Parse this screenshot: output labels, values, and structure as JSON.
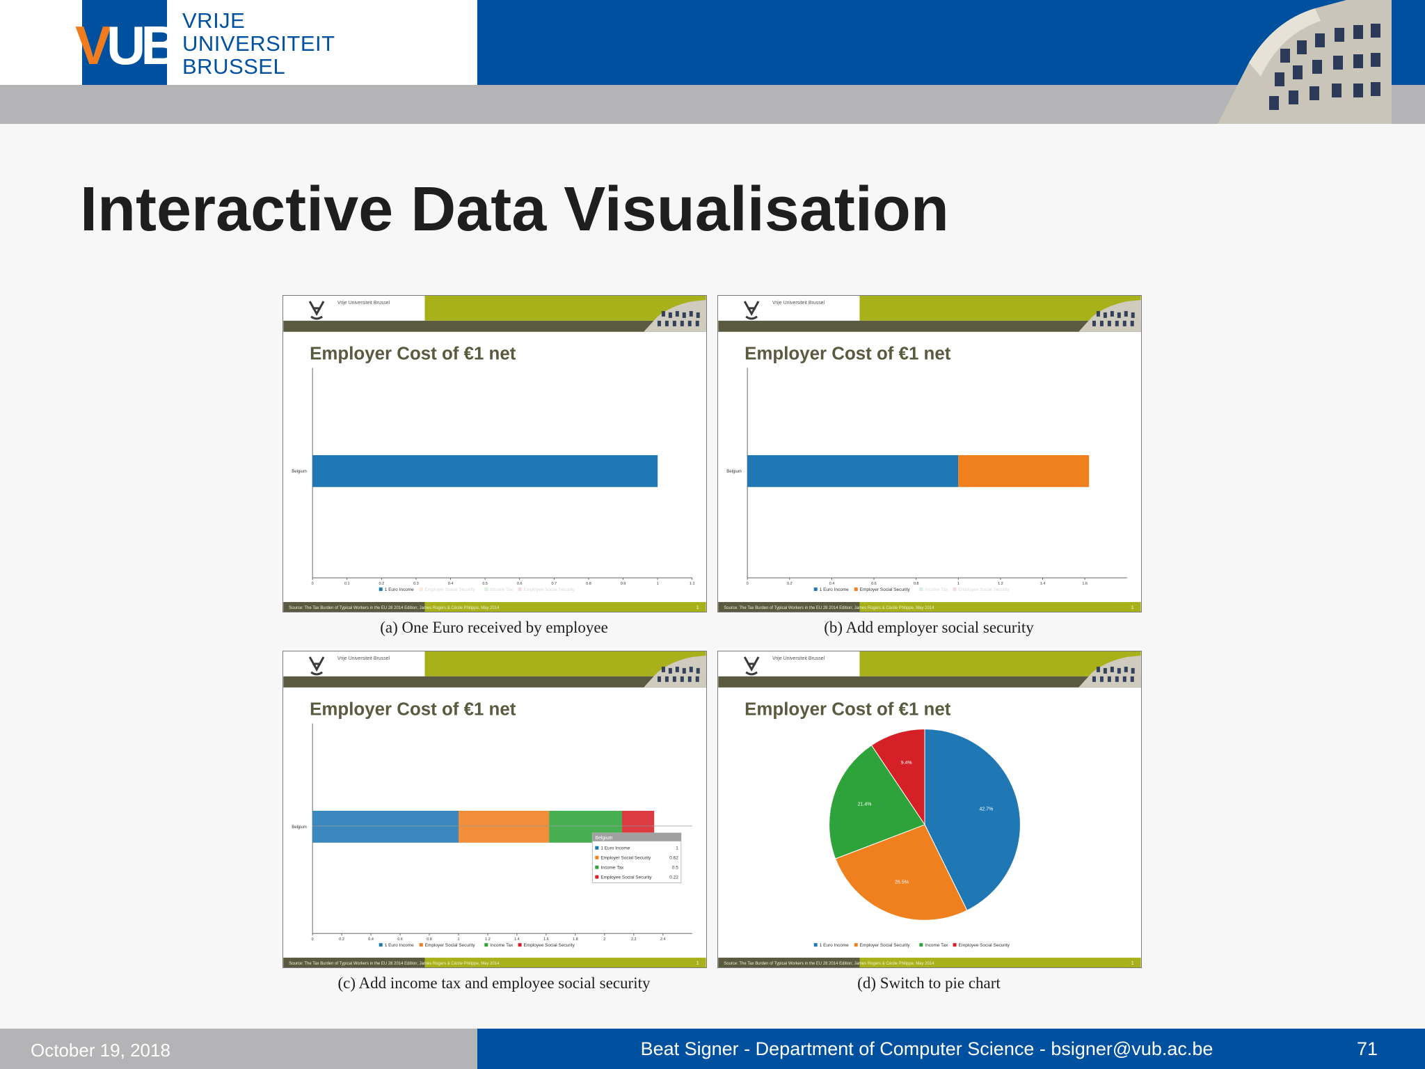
{
  "header": {
    "logo_text": "VUB",
    "university_lines": [
      "VRIJE",
      "UNIVERSITEIT",
      "BRUSSEL"
    ]
  },
  "slide": {
    "title": "Interactive Data Visualisation"
  },
  "colors": {
    "vub_blue": "#0050a0",
    "vub_orange": "#f07c1e",
    "panel_olive": "#a8b11a",
    "panel_dark": "#5a5a40",
    "series": [
      "#1f78b4",
      "#f07f1e",
      "#2ea33a",
      "#d62027"
    ]
  },
  "panel_common": {
    "header_text": "Vrije Universiteit Brussel",
    "title": "Employer Cost of €1 net",
    "category": "Belgium",
    "legend": [
      "1 Euro Income",
      "Employer Social Security",
      "Income Tax",
      "Employee Social Security"
    ],
    "source": "Source: The Tax Burden of Typical Workers in the EU 28 2014 Edition; James Rogers & Cécile Philippe, May 2014",
    "page": "1"
  },
  "captions": [
    "(a) One Euro received by employee",
    "(b) Add employer social security",
    "(c) Add income tax and employee social security",
    "(d) Switch to pie chart"
  ],
  "chart_data": [
    {
      "type": "bar",
      "title": "Employer Cost of €1 net",
      "categories": [
        "Belgium"
      ],
      "series": [
        {
          "name": "1 Euro Income",
          "values": [
            1
          ]
        }
      ],
      "legend_faded": [
        "Employer Social Security",
        "Income Tax",
        "Employee Social Security"
      ],
      "xlim": [
        0,
        1.1
      ],
      "x_ticks": [
        "0",
        "0.1",
        "0.2",
        "0.3",
        "0.4",
        "0.5",
        "0.6",
        "0.7",
        "0.8",
        "0.9",
        "1",
        "1.1"
      ]
    },
    {
      "type": "bar",
      "title": "Employer Cost of €1 net",
      "categories": [
        "Belgium"
      ],
      "series": [
        {
          "name": "1 Euro Income",
          "values": [
            1
          ]
        },
        {
          "name": "Employer Social Security",
          "values": [
            0.62
          ]
        }
      ],
      "legend_faded": [
        "Income Tax",
        "Employee Social Security"
      ],
      "xlim": [
        0,
        1.8
      ],
      "x_ticks": [
        "0",
        "0.2",
        "0.4",
        "0.6",
        "0.8",
        "1",
        "1.2",
        "1.4",
        "1.6"
      ]
    },
    {
      "type": "bar",
      "title": "Employer Cost of €1 net",
      "categories": [
        "Belgium"
      ],
      "series": [
        {
          "name": "1 Euro Income",
          "values": [
            1
          ]
        },
        {
          "name": "Employer Social Security",
          "values": [
            0.62
          ]
        },
        {
          "name": "Income Tax",
          "values": [
            0.5
          ]
        },
        {
          "name": "Employee Social Security",
          "values": [
            0.22
          ]
        }
      ],
      "xlim": [
        0,
        2.6
      ],
      "x_ticks": [
        "0",
        "0.2",
        "0.4",
        "0.6",
        "0.8",
        "1",
        "1.2",
        "1.4",
        "1.6",
        "1.8",
        "2",
        "2.2",
        "2.4"
      ],
      "tooltip": {
        "title": "Belgium",
        "rows": [
          {
            "name": "1 Euro Income",
            "value": "1"
          },
          {
            "name": "Employer Social Security",
            "value": "0.62"
          },
          {
            "name": "Income Tax",
            "value": "0.5"
          },
          {
            "name": "Employee Social Security",
            "value": "0.22"
          }
        ]
      }
    },
    {
      "type": "pie",
      "title": "Employer Cost of €1 net",
      "slices": [
        {
          "name": "1 Euro Income",
          "value": 42.7,
          "label": "42.7%"
        },
        {
          "name": "Employer Social Security",
          "value": 26.5,
          "label": "26.5%"
        },
        {
          "name": "Income Tax",
          "value": 21.4,
          "label": "21.4%"
        },
        {
          "name": "Employee Social Security",
          "value": 9.4,
          "label": "9.4%"
        }
      ]
    }
  ],
  "footer": {
    "date": "October 19, 2018",
    "author": "Beat Signer - Department of Computer Science - bsigner@vub.ac.be",
    "page": "71"
  }
}
